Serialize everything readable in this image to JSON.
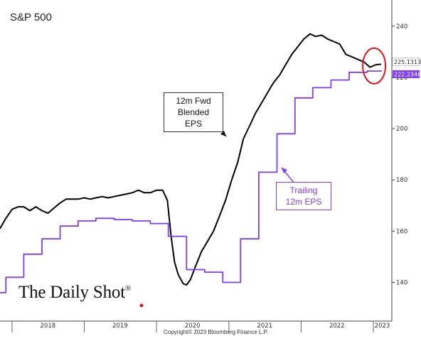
{
  "chart_data": {
    "type": "line",
    "title": "S&P 500",
    "x_ticks": [
      "2018",
      "2019",
      "2020",
      "2021",
      "2022",
      "2023"
    ],
    "y_ticks": [
      "140",
      "160",
      "180",
      "200",
      "220",
      "240"
    ],
    "ylim": [
      126,
      248
    ],
    "xlim": [
      "2017-11",
      "2023-04"
    ],
    "annotations": [
      "12m Fwd\nBlended EPS",
      "Trailing\n12m EPS"
    ],
    "last_values": {
      "fwd": "225.1313",
      "trailing": "222.2346"
    },
    "series": [
      {
        "name": "12m Fwd Blended EPS",
        "color": "#000000",
        "points": [
          [
            "2017-11-01",
            161
          ],
          [
            "2017-12-01",
            165
          ],
          [
            "2018-01-01",
            168.5
          ],
          [
            "2018-02-01",
            169.5
          ],
          [
            "2018-03-01",
            169.5
          ],
          [
            "2018-04-01",
            168
          ],
          [
            "2018-05-01",
            169.5
          ],
          [
            "2018-06-01",
            168
          ],
          [
            "2018-07-01",
            167
          ],
          [
            "2018-08-01",
            169
          ],
          [
            "2018-09-01",
            171
          ],
          [
            "2018-10-01",
            172.5
          ],
          [
            "2018-11-01",
            172.5
          ],
          [
            "2018-12-01",
            172.5
          ],
          [
            "2019-01-01",
            173
          ],
          [
            "2019-02-01",
            172.5
          ],
          [
            "2019-03-01",
            173
          ],
          [
            "2019-04-01",
            173.5
          ],
          [
            "2019-05-01",
            173
          ],
          [
            "2019-06-01",
            173.5
          ],
          [
            "2019-07-01",
            174
          ],
          [
            "2019-08-01",
            174.5
          ],
          [
            "2019-09-01",
            175
          ],
          [
            "2019-10-01",
            176
          ],
          [
            "2019-11-01",
            175
          ],
          [
            "2019-12-01",
            175
          ],
          [
            "2020-01-01",
            176
          ],
          [
            "2020-02-01",
            176
          ],
          [
            "2020-02-25",
            172
          ],
          [
            "2020-03-15",
            158
          ],
          [
            "2020-04-01",
            148
          ],
          [
            "2020-04-20",
            143
          ],
          [
            "2020-05-15",
            139.5
          ],
          [
            "2020-06-01",
            139
          ],
          [
            "2020-06-20",
            141
          ],
          [
            "2020-07-15",
            146
          ],
          [
            "2020-08-15",
            152
          ],
          [
            "2020-09-15",
            156
          ],
          [
            "2020-10-15",
            160
          ],
          [
            "2020-11-15",
            166
          ],
          [
            "2020-12-15",
            172
          ],
          [
            "2021-01-15",
            180
          ],
          [
            "2021-02-15",
            187
          ],
          [
            "2021-03-15",
            196
          ],
          [
            "2021-04-15",
            201
          ],
          [
            "2021-05-15",
            206
          ],
          [
            "2021-06-15",
            210
          ],
          [
            "2021-07-15",
            214
          ],
          [
            "2021-08-15",
            218
          ],
          [
            "2021-09-15",
            221
          ],
          [
            "2021-10-15",
            225
          ],
          [
            "2021-11-15",
            229
          ],
          [
            "2021-12-15",
            232
          ],
          [
            "2022-01-15",
            235
          ],
          [
            "2022-02-15",
            237
          ],
          [
            "2022-03-15",
            236
          ],
          [
            "2022-04-15",
            236.5
          ],
          [
            "2022-05-15",
            235
          ],
          [
            "2022-06-15",
            234
          ],
          [
            "2022-07-15",
            233
          ],
          [
            "2022-08-15",
            229
          ],
          [
            "2022-09-15",
            228
          ],
          [
            "2022-10-15",
            227
          ],
          [
            "2022-11-15",
            226
          ],
          [
            "2022-12-15",
            224
          ],
          [
            "2023-01-15",
            225
          ],
          [
            "2023-02-10",
            225.13
          ]
        ]
      },
      {
        "name": "Trailing 12m EPS",
        "color": "#7f3cf0",
        "steps": [
          [
            "2017-11-01",
            136
          ],
          [
            "2017-12-01",
            142
          ],
          [
            "2018-03-01",
            151
          ],
          [
            "2018-06-01",
            157
          ],
          [
            "2018-09-01",
            162
          ],
          [
            "2018-12-01",
            164
          ],
          [
            "2019-03-01",
            165
          ],
          [
            "2019-06-01",
            164.5
          ],
          [
            "2019-09-01",
            164
          ],
          [
            "2019-12-01",
            163
          ],
          [
            "2020-03-01",
            158
          ],
          [
            "2020-06-01",
            145
          ],
          [
            "2020-09-01",
            144
          ],
          [
            "2020-12-01",
            140
          ],
          [
            "2021-03-01",
            157
          ],
          [
            "2021-06-01",
            183
          ],
          [
            "2021-09-01",
            198
          ],
          [
            "2021-12-01",
            212
          ],
          [
            "2022-03-01",
            216
          ],
          [
            "2022-06-01",
            219
          ],
          [
            "2022-09-01",
            222
          ],
          [
            "2022-12-01",
            222.5
          ],
          [
            "2023-02-10",
            222.2346
          ]
        ]
      }
    ],
    "legend": "none",
    "grid": false
  },
  "brand": {
    "name": "The Daily Shot",
    "mark": "®"
  },
  "footer": {
    "copyright": "Copyright© 2023 Bloomberg Finance L.P."
  }
}
